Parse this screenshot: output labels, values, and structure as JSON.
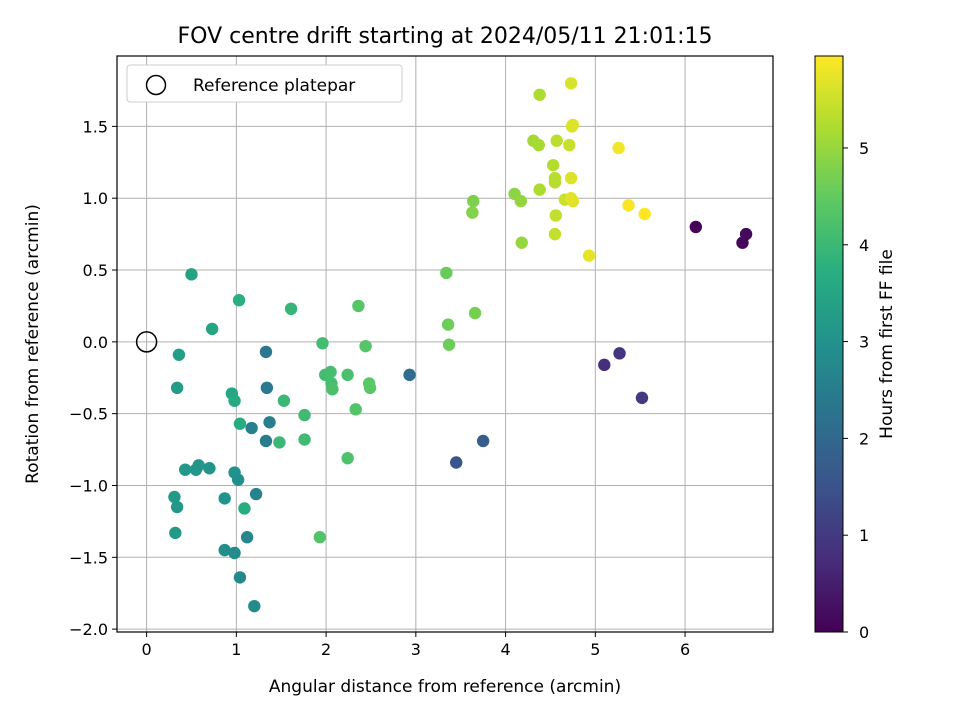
{
  "chart_data": {
    "type": "scatter",
    "title": "FOV centre drift starting at 2024/05/11 21:01:15",
    "xlabel": "Angular distance from reference (arcmin)",
    "ylabel": "Rotation from reference (arcmin)",
    "xlim": [
      -0.33,
      6.98
    ],
    "ylim": [
      -2.02,
      1.99
    ],
    "xticks": [
      "0",
      "1",
      "2",
      "3",
      "4",
      "5",
      "6"
    ],
    "yticks": [
      "−2.0",
      "−1.5",
      "−1.0",
      "−0.5",
      "0.0",
      "0.5",
      "1.0",
      "1.5"
    ],
    "grid": true,
    "legend": {
      "position": "top-left",
      "label": "Reference platepar"
    },
    "reference_point": {
      "x": 0,
      "y": 0
    },
    "colorbar": {
      "label": "Hours from first FF file",
      "colormap": "viridis",
      "range": [
        0,
        5.95
      ],
      "ticks": [
        "0",
        "1",
        "2",
        "3",
        "4",
        "5"
      ]
    },
    "points": [
      {
        "x": 6.12,
        "y": 0.8,
        "c": 0.05
      },
      {
        "x": 6.64,
        "y": 0.69,
        "c": 0.1
      },
      {
        "x": 6.68,
        "y": 0.75,
        "c": 0.15
      },
      {
        "x": 5.1,
        "y": -0.16,
        "c": 0.8
      },
      {
        "x": 5.27,
        "y": -0.08,
        "c": 0.9
      },
      {
        "x": 5.52,
        "y": -0.39,
        "c": 1.0
      },
      {
        "x": 3.45,
        "y": -0.84,
        "c": 1.55
      },
      {
        "x": 3.75,
        "y": -0.69,
        "c": 1.75
      },
      {
        "x": 2.93,
        "y": -0.23,
        "c": 2.1
      },
      {
        "x": 1.33,
        "y": -0.07,
        "c": 2.35
      },
      {
        "x": 1.34,
        "y": -0.32,
        "c": 2.4
      },
      {
        "x": 1.33,
        "y": -0.69,
        "c": 2.45
      },
      {
        "x": 1.37,
        "y": -0.56,
        "c": 2.55
      },
      {
        "x": 1.17,
        "y": -0.6,
        "c": 2.6
      },
      {
        "x": 1.22,
        "y": -1.06,
        "c": 2.65
      },
      {
        "x": 1.12,
        "y": -1.36,
        "c": 2.7
      },
      {
        "x": 1.04,
        "y": -1.64,
        "c": 2.75
      },
      {
        "x": 1.2,
        "y": -1.84,
        "c": 2.8
      },
      {
        "x": 0.98,
        "y": -1.47,
        "c": 2.85
      },
      {
        "x": 0.87,
        "y": -1.45,
        "c": 2.9
      },
      {
        "x": 1.02,
        "y": -0.96,
        "c": 2.95
      },
      {
        "x": 0.98,
        "y": -0.91,
        "c": 3.0
      },
      {
        "x": 0.87,
        "y": -1.09,
        "c": 3.05
      },
      {
        "x": 0.7,
        "y": -0.88,
        "c": 3.05
      },
      {
        "x": 0.58,
        "y": -0.86,
        "c": 3.1
      },
      {
        "x": 0.55,
        "y": -0.89,
        "c": 3.1
      },
      {
        "x": 0.43,
        "y": -0.89,
        "c": 3.15
      },
      {
        "x": 0.34,
        "y": -1.15,
        "c": 3.15
      },
      {
        "x": 0.31,
        "y": -1.08,
        "c": 3.2
      },
      {
        "x": 0.32,
        "y": -1.33,
        "c": 3.2
      },
      {
        "x": 0.34,
        "y": -0.32,
        "c": 3.25
      },
      {
        "x": 0.36,
        "y": -0.09,
        "c": 3.3
      },
      {
        "x": 0.5,
        "y": 0.47,
        "c": 3.4
      },
      {
        "x": 0.73,
        "y": 0.09,
        "c": 3.5
      },
      {
        "x": 0.95,
        "y": -0.36,
        "c": 3.55
      },
      {
        "x": 0.98,
        "y": -0.41,
        "c": 3.6
      },
      {
        "x": 1.04,
        "y": -0.57,
        "c": 3.65
      },
      {
        "x": 1.09,
        "y": -1.16,
        "c": 3.7
      },
      {
        "x": 1.03,
        "y": 0.29,
        "c": 3.75
      },
      {
        "x": 1.61,
        "y": 0.23,
        "c": 3.9
      },
      {
        "x": 1.48,
        "y": -0.7,
        "c": 4.0
      },
      {
        "x": 1.53,
        "y": -0.41,
        "c": 4.0
      },
      {
        "x": 1.76,
        "y": -0.51,
        "c": 4.05
      },
      {
        "x": 1.76,
        "y": -0.68,
        "c": 4.05
      },
      {
        "x": 1.96,
        "y": -0.01,
        "c": 4.1
      },
      {
        "x": 1.99,
        "y": -0.23,
        "c": 4.1
      },
      {
        "x": 2.05,
        "y": -0.21,
        "c": 4.15
      },
      {
        "x": 2.06,
        "y": -0.29,
        "c": 4.15
      },
      {
        "x": 2.07,
        "y": -0.33,
        "c": 4.2
      },
      {
        "x": 2.24,
        "y": -0.23,
        "c": 4.2
      },
      {
        "x": 2.24,
        "y": -0.81,
        "c": 4.25
      },
      {
        "x": 1.93,
        "y": -1.36,
        "c": 4.3
      },
      {
        "x": 2.33,
        "y": -0.47,
        "c": 4.3
      },
      {
        "x": 2.36,
        "y": 0.25,
        "c": 4.35
      },
      {
        "x": 2.44,
        "y": -0.03,
        "c": 4.35
      },
      {
        "x": 2.48,
        "y": -0.29,
        "c": 4.4
      },
      {
        "x": 2.49,
        "y": -0.32,
        "c": 4.4
      },
      {
        "x": 3.34,
        "y": 0.48,
        "c": 4.55
      },
      {
        "x": 3.36,
        "y": 0.12,
        "c": 4.6
      },
      {
        "x": 3.37,
        "y": -0.02,
        "c": 4.6
      },
      {
        "x": 3.66,
        "y": 0.2,
        "c": 4.7
      },
      {
        "x": 3.64,
        "y": 0.98,
        "c": 4.75
      },
      {
        "x": 3.63,
        "y": 0.9,
        "c": 4.8
      },
      {
        "x": 4.1,
        "y": 1.03,
        "c": 4.9
      },
      {
        "x": 4.17,
        "y": 0.98,
        "c": 4.95
      },
      {
        "x": 4.18,
        "y": 0.69,
        "c": 5.0
      },
      {
        "x": 4.31,
        "y": 1.4,
        "c": 5.1
      },
      {
        "x": 4.37,
        "y": 1.37,
        "c": 5.15
      },
      {
        "x": 4.38,
        "y": 1.72,
        "c": 5.2
      },
      {
        "x": 4.38,
        "y": 1.06,
        "c": 5.2
      },
      {
        "x": 4.53,
        "y": 1.23,
        "c": 5.25
      },
      {
        "x": 4.55,
        "y": 1.14,
        "c": 5.3
      },
      {
        "x": 4.55,
        "y": 1.11,
        "c": 5.3
      },
      {
        "x": 4.57,
        "y": 1.4,
        "c": 5.35
      },
      {
        "x": 4.56,
        "y": 0.88,
        "c": 5.4
      },
      {
        "x": 4.55,
        "y": 0.75,
        "c": 5.4
      },
      {
        "x": 4.66,
        "y": 0.99,
        "c": 5.45
      },
      {
        "x": 4.71,
        "y": 1.37,
        "c": 5.45
      },
      {
        "x": 4.73,
        "y": 1.8,
        "c": 5.6
      },
      {
        "x": 4.74,
        "y": 1.5,
        "c": 5.6
      },
      {
        "x": 4.75,
        "y": 1.51,
        "c": 5.65
      },
      {
        "x": 4.73,
        "y": 1.14,
        "c": 5.65
      },
      {
        "x": 4.73,
        "y": 1.0,
        "c": 5.7
      },
      {
        "x": 4.75,
        "y": 0.98,
        "c": 5.7
      },
      {
        "x": 4.93,
        "y": 0.6,
        "c": 5.75
      },
      {
        "x": 5.26,
        "y": 1.35,
        "c": 5.85
      },
      {
        "x": 5.37,
        "y": 0.95,
        "c": 5.9
      },
      {
        "x": 5.55,
        "y": 0.89,
        "c": 5.95
      }
    ]
  }
}
